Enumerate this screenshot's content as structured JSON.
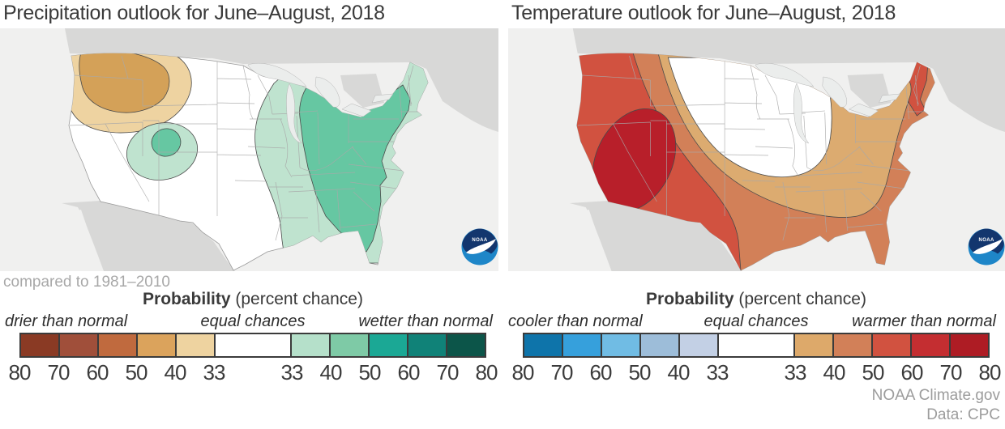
{
  "panels": [
    {
      "title": "Precipitation outlook for June–August, 2018",
      "note": "compared to 1981–2010",
      "legend": {
        "title_bold": "Probability",
        "title_rest": " (percent chance)",
        "label_left": "drier than normal",
        "label_center": "equal chances",
        "label_right": "wetter than normal",
        "tick_labels": [
          "80",
          "70",
          "60",
          "50",
          "40",
          "33",
          "33",
          "40",
          "50",
          "60",
          "70",
          "80"
        ],
        "colors": [
          "#8a3a24",
          "#a04f3a",
          "#c06a3e",
          "#dba35c",
          "#eed3a0",
          "#ffffff",
          "#b5e0ca",
          "#7ecaa6",
          "#1ba895",
          "#108278",
          "#0c5549"
        ]
      },
      "map_regions": [
        {
          "area": "Pacific Northwest (coastal WA/OR)",
          "category": "drier than normal",
          "probability": "33-40%"
        },
        {
          "area": "Inland Pacific Northwest / northern Rockies",
          "category": "drier than normal",
          "probability": "40-50%"
        },
        {
          "area": "Four Corners region",
          "category": "wetter than normal",
          "probability": "33-40%"
        },
        {
          "area": "Four Corners core (UT/CO border)",
          "category": "wetter than normal",
          "probability": "40-50%"
        },
        {
          "area": "Eastern US from upper Midwest to Gulf and Atlantic coasts",
          "category": "wetter than normal",
          "probability": "33-40%"
        },
        {
          "area": "Great Lakes / Ohio Valley / Appalachians / Southeast",
          "category": "wetter than normal",
          "probability": "40-50%"
        },
        {
          "area": "Rest of contiguous US",
          "category": "equal chances",
          "probability": "equal chances"
        }
      ]
    },
    {
      "title": "Temperature outlook for June–August, 2018",
      "legend": {
        "title_bold": "Probability",
        "title_rest": " (percent chance)",
        "label_left": "cooler than normal",
        "label_center": "equal chances",
        "label_right": "warmer than normal",
        "tick_labels": [
          "80",
          "70",
          "60",
          "50",
          "40",
          "33",
          "33",
          "40",
          "50",
          "60",
          "70",
          "80"
        ],
        "colors": [
          "#0e74aa",
          "#36a0dc",
          "#70bce4",
          "#9dbdd9",
          "#c3d0e5",
          "#ffffff",
          "#dda96a",
          "#d28058",
          "#d15240",
          "#c42e31",
          "#ae1c24"
        ]
      },
      "map_regions": [
        {
          "area": "Southwest / Four Corners core",
          "category": "warmer than normal",
          "probability": "60-70%"
        },
        {
          "area": "West, Texas and New England (Maine)",
          "category": "warmer than normal",
          "probability": "50-60%"
        },
        {
          "area": "West Coast, Gulf Coast and East Coast band",
          "category": "warmer than normal",
          "probability": "40-50%"
        },
        {
          "area": "Interior band from Rockies through Southeast and Northeast",
          "category": "warmer than normal",
          "probability": "33-40%"
        },
        {
          "area": "Northern Plains / Upper Midwest",
          "category": "equal chances",
          "probability": "equal chances"
        }
      ]
    }
  ],
  "footer": {
    "line1": "NOAA Climate.gov",
    "line2": "Data: CPC"
  },
  "logo": {
    "label": "NOAA"
  },
  "chart_data": {
    "type": "choropleth-map-pair",
    "maps": [
      {
        "title": "Precipitation outlook for June–August, 2018",
        "baseline_note": "compared to 1981–2010",
        "scale_title": "Probability (percent chance)",
        "scale_categories": [
          "drier than normal",
          "equal chances",
          "wetter than normal"
        ],
        "scale_ticks": [
          80,
          70,
          60,
          50,
          40,
          33,
          33,
          40,
          50,
          60,
          70,
          80
        ],
        "scale_colors": [
          "#8a3a24",
          "#a04f3a",
          "#c06a3e",
          "#dba35c",
          "#eed3a0",
          "#ffffff",
          "#b5e0ca",
          "#7ecaa6",
          "#1ba895",
          "#108278",
          "#0c5549"
        ]
      },
      {
        "title": "Temperature outlook for June–August, 2018",
        "scale_title": "Probability (percent chance)",
        "scale_categories": [
          "cooler than normal",
          "equal chances",
          "warmer than normal"
        ],
        "scale_ticks": [
          80,
          70,
          60,
          50,
          40,
          33,
          33,
          40,
          50,
          60,
          70,
          80
        ],
        "scale_colors": [
          "#0e74aa",
          "#36a0dc",
          "#70bce4",
          "#9dbdd9",
          "#c3d0e5",
          "#ffffff",
          "#dda96a",
          "#d28058",
          "#d15240",
          "#c42e31",
          "#ae1c24"
        ]
      }
    ],
    "source": [
      "NOAA Climate.gov",
      "Data: CPC"
    ]
  }
}
